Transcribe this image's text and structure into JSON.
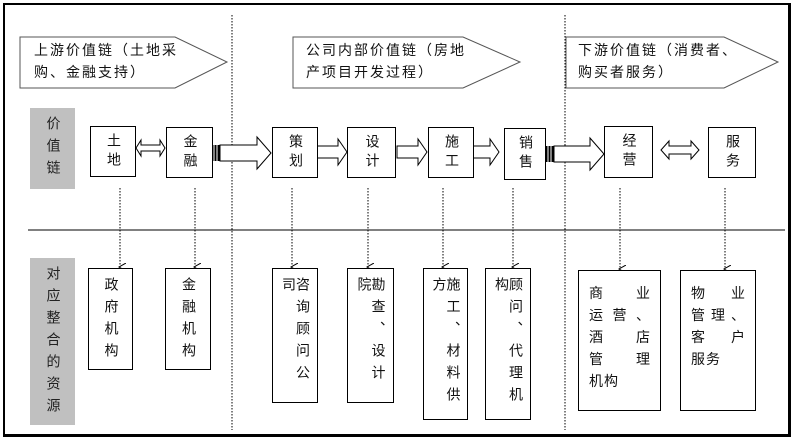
{
  "banners": [
    {
      "text_line1": "上游价值链（土地采",
      "text_line2": "购、金融支持）"
    },
    {
      "text_line1": "公司内部价值链（房地",
      "text_line2": "产项目开发过程）"
    },
    {
      "text_line1": "下游价值链（消费者、",
      "text_line2": "购买者服务）"
    }
  ],
  "row_labels": {
    "value_chain": "价值链",
    "resources": "对应整合的资源"
  },
  "chain_boxes": [
    "土地",
    "金融",
    "策划",
    "设计",
    "施工",
    "销售",
    "经营",
    "服务"
  ],
  "resource_boxes": [
    "政府机构",
    "金融机构",
    "咨询顾问公司",
    "勘查、设计院",
    "施工、材料供方",
    "顾问、代理机构"
  ],
  "resource_multiline": [
    {
      "lines": [
        "商　业",
        "运营、",
        "酒　店",
        "管　理",
        "机构"
      ]
    },
    {
      "lines": [
        "物　业",
        "管理、",
        "客　户",
        "服务"
      ]
    }
  ],
  "colors": {
    "label_background": "#c0c0c0",
    "line": "#000000"
  }
}
